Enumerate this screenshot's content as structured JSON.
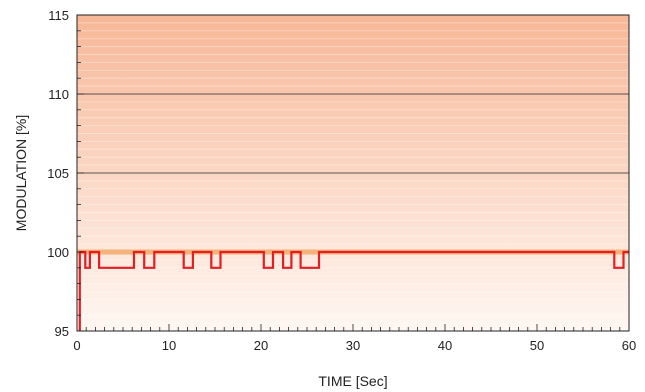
{
  "chart_data": {
    "type": "line",
    "title": "",
    "xlabel": "TIME [Sec]",
    "ylabel": "MODULATION [%]",
    "xlim": [
      0,
      60
    ],
    "ylim": [
      95,
      115
    ],
    "x_ticks": [
      0,
      10,
      20,
      30,
      40,
      50,
      60
    ],
    "y_ticks": [
      95,
      100,
      105,
      110,
      115
    ],
    "x_tick_labels": [
      "0",
      "10",
      "20",
      "30",
      "40",
      "50",
      "60"
    ],
    "y_tick_labels": [
      "95",
      "100",
      "105",
      "110",
      "115"
    ],
    "grid": "horizontal at 100, 105, 110",
    "limit_band": {
      "value": 100,
      "color": "#f5b27a"
    },
    "background_gradient": {
      "top": "#f7b797",
      "bottom": "#fff7f2"
    },
    "series": [
      {
        "color": "#e31e24",
        "step": true,
        "x": [
          0.3,
          0.3,
          0.9,
          0.9,
          1.4,
          1.4,
          2.4,
          2.4,
          3.1,
          3.1,
          6.2,
          6.2,
          7.3,
          7.3,
          8.4,
          8.4,
          11.6,
          11.6,
          12.6,
          12.6,
          14.6,
          14.6,
          15.6,
          15.6,
          20.3,
          20.3,
          21.3,
          21.3,
          22.4,
          22.4,
          23.3,
          23.3,
          24.3,
          24.3,
          26.3,
          26.3,
          58.4,
          58.4,
          59.4,
          59.4,
          60
        ],
        "y": [
          95,
          100,
          100,
          99,
          99,
          100,
          100,
          99,
          99,
          99,
          99,
          100,
          100,
          99,
          99,
          100,
          100,
          99,
          99,
          100,
          100,
          99,
          99,
          100,
          100,
          99,
          99,
          100,
          100,
          99,
          99,
          100,
          100,
          99,
          99,
          100,
          100,
          99,
          99,
          100,
          100
        ]
      }
    ]
  }
}
